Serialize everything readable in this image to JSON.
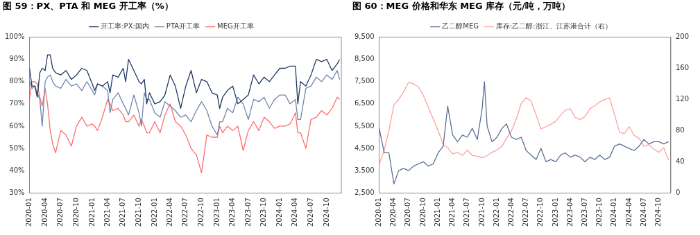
{
  "chart_data": [
    {
      "type": "line",
      "title": "图 59：PX、PTA 和 MEG 开工率（%）",
      "legend": "top",
      "grid": false,
      "x": [
        "2020-01-01",
        "2020-01-15",
        "2020-02-01",
        "2020-02-15",
        "2020-03-01",
        "2020-03-15",
        "2020-04-01",
        "2020-04-15",
        "2020-05-01",
        "2020-05-15",
        "2020-06-01",
        "2020-07-01",
        "2020-08-01",
        "2020-09-01",
        "2020-10-01",
        "2020-11-01",
        "2020-12-01",
        "2021-01-01",
        "2021-01-15",
        "2021-02-01",
        "2021-03-01",
        "2021-04-01",
        "2021-04-15",
        "2021-05-01",
        "2021-06-01",
        "2021-07-01",
        "2021-07-15",
        "2021-08-01",
        "2021-09-01",
        "2021-10-01",
        "2021-10-15",
        "2021-11-01",
        "2021-11-15",
        "2021-12-01",
        "2022-01-01",
        "2022-02-01",
        "2022-03-01",
        "2022-04-01",
        "2022-05-01",
        "2022-06-01",
        "2022-07-01",
        "2022-08-01",
        "2022-09-01",
        "2022-10-01",
        "2022-11-01",
        "2022-12-01",
        "2023-01-01",
        "2023-01-15",
        "2023-02-01",
        "2023-03-01",
        "2023-04-01",
        "2023-05-01",
        "2023-06-01",
        "2023-07-01",
        "2023-08-01",
        "2023-09-01",
        "2023-10-01",
        "2023-11-01",
        "2023-12-01",
        "2024-01-01",
        "2024-02-01",
        "2024-03-01",
        "2024-04-01",
        "2024-04-15",
        "2024-05-01",
        "2024-06-01",
        "2024-07-01",
        "2024-08-01",
        "2024-09-01",
        "2024-10-01",
        "2024-11-01",
        "2024-12-01",
        "2024-12-15"
      ],
      "xlim": [
        "2020-01-01",
        "2024-12-25"
      ],
      "xticks": [
        "2020-01",
        "2020-04",
        "2020-07",
        "2020-10",
        "2021-01",
        "2021-04",
        "2021-07",
        "2021-10",
        "2022-01",
        "2022-04",
        "2022-07",
        "2022-10",
        "2023-01",
        "2023-04",
        "2023-07",
        "2023-10",
        "2024-01",
        "2024-04",
        "2024-07",
        "2024-10"
      ],
      "ylim": [
        30,
        100
      ],
      "yticks": [
        {
          "value": 30,
          "label": "30%"
        },
        {
          "value": 40,
          "label": "40%"
        },
        {
          "value": 50,
          "label": "50%"
        },
        {
          "value": 60,
          "label": "60%"
        },
        {
          "value": 70,
          "label": "70%"
        },
        {
          "value": 80,
          "label": "80%"
        },
        {
          "value": 90,
          "label": "90%"
        },
        {
          "value": 100,
          "label": "100%"
        }
      ],
      "series": [
        {
          "name": "开工率:PX:国内",
          "color": "#1f3864",
          "values": [
            86,
            78,
            78,
            73,
            84,
            86,
            85,
            92,
            92,
            86,
            84,
            83,
            85,
            81,
            83,
            86,
            85,
            79,
            76,
            79,
            78,
            80,
            75,
            83,
            82,
            86,
            80,
            90,
            85,
            80,
            79,
            81,
            70,
            75,
            70,
            71,
            74,
            83,
            78,
            68,
            78,
            85,
            75,
            81,
            80,
            75,
            74,
            68,
            73,
            76,
            78,
            70,
            72,
            74,
            83,
            79,
            82,
            80,
            83,
            86,
            86,
            87,
            87,
            70,
            80,
            78,
            83,
            90,
            89,
            90,
            85,
            88,
            90
          ]
        },
        {
          "name": "PTA开工率",
          "color": "#6f86ad",
          "values": [
            80,
            77,
            78,
            75,
            72,
            60,
            80,
            82,
            83,
            80,
            78,
            77,
            81,
            78,
            79,
            76,
            80,
            76,
            74,
            79,
            78,
            76,
            66,
            72,
            75,
            70,
            68,
            65,
            74,
            66,
            60,
            75,
            72,
            72,
            66,
            64,
            71,
            69,
            67,
            64,
            65,
            62,
            67,
            71,
            67,
            60,
            56,
            62,
            62,
            68,
            66,
            73,
            70,
            63,
            72,
            71,
            73,
            68,
            72,
            74,
            74,
            70,
            72,
            63,
            63,
            77,
            78,
            82,
            80,
            83,
            81,
            85,
            81
          ]
        },
        {
          "name": "MEG开工率",
          "color": "#ff6b6b",
          "values": [
            72,
            80,
            80,
            79,
            73,
            69,
            77,
            70,
            58,
            52,
            48,
            58,
            56,
            51,
            60,
            64,
            60,
            61,
            60,
            58,
            64,
            72,
            70,
            67,
            68,
            65,
            62,
            62,
            65,
            60,
            63,
            60,
            57,
            57,
            62,
            57,
            65,
            70,
            62,
            60,
            56,
            50,
            47,
            39,
            56,
            55,
            55,
            60,
            57,
            60,
            58,
            60,
            49,
            58,
            62,
            58,
            64,
            62,
            59,
            60,
            60,
            61,
            66,
            57,
            57,
            50,
            63,
            64,
            67,
            65,
            68,
            73,
            72
          ]
        }
      ]
    },
    {
      "type": "line",
      "title": "图 60：MEG 价格和华东 MEG 库存（元/吨，万吨）",
      "legend": "top",
      "grid": false,
      "x": [
        "2020-01-01",
        "2020-02-01",
        "2020-03-01",
        "2020-04-01",
        "2020-05-01",
        "2020-06-01",
        "2020-07-01",
        "2020-08-01",
        "2020-09-01",
        "2020-10-01",
        "2020-11-01",
        "2020-12-01",
        "2021-01-01",
        "2021-02-01",
        "2021-03-01",
        "2021-04-01",
        "2021-05-01",
        "2021-06-01",
        "2021-07-01",
        "2021-08-01",
        "2021-09-01",
        "2021-10-01",
        "2021-10-15",
        "2021-11-01",
        "2021-12-01",
        "2022-01-01",
        "2022-02-01",
        "2022-03-01",
        "2022-04-01",
        "2022-05-01",
        "2022-06-01",
        "2022-07-01",
        "2022-08-01",
        "2022-09-01",
        "2022-10-01",
        "2022-11-01",
        "2022-12-01",
        "2023-01-01",
        "2023-02-01",
        "2023-03-01",
        "2023-04-01",
        "2023-05-01",
        "2023-06-01",
        "2023-07-01",
        "2023-08-01",
        "2023-09-01",
        "2023-10-01",
        "2023-11-01",
        "2023-12-01",
        "2024-01-01",
        "2024-02-01",
        "2024-03-01",
        "2024-04-01",
        "2024-05-01",
        "2024-06-01",
        "2024-07-01",
        "2024-08-01",
        "2024-09-01",
        "2024-10-01",
        "2024-11-01",
        "2024-12-01"
      ],
      "xlim": [
        "2020-01-01",
        "2024-12-15"
      ],
      "xticks": [
        "2020-01",
        "2020-04",
        "2020-07",
        "2020-10",
        "2021-01",
        "2021-04",
        "2021-07",
        "2021-10",
        "2022-01",
        "2022-04",
        "2022-07",
        "2022-10",
        "2023-01",
        "2023-04",
        "2023-07",
        "2023-10",
        "2024-01",
        "2024-04",
        "2024-07",
        "2024-10"
      ],
      "ylim": [
        2500,
        9500
      ],
      "yticks": [
        {
          "value": 2500,
          "label": "2,500"
        },
        {
          "value": 3500,
          "label": "3,500"
        },
        {
          "value": 4500,
          "label": "4,500"
        },
        {
          "value": 5500,
          "label": "5,500"
        },
        {
          "value": 6500,
          "label": "6,500"
        },
        {
          "value": 7500,
          "label": "7,500"
        },
        {
          "value": 8500,
          "label": "8,500"
        },
        {
          "value": 9500,
          "label": "9,500"
        }
      ],
      "y2lim": [
        0,
        200
      ],
      "y2ticks": [
        0,
        40,
        80,
        120,
        160,
        200
      ],
      "series": [
        {
          "name": "乙二醇MEG",
          "color": "#5b6f95",
          "values": [
            5400,
            4300,
            4300,
            2900,
            3500,
            3600,
            3500,
            3700,
            3800,
            3900,
            3700,
            3800,
            4300,
            4600,
            6400,
            5100,
            4800,
            5100,
            5000,
            5400,
            4900,
            6300,
            7500,
            5500,
            4800,
            5000,
            5400,
            5600,
            5000,
            4900,
            5000,
            4400,
            4200,
            4000,
            4500,
            3900,
            4000,
            3900,
            4200,
            4300,
            4100,
            4200,
            4100,
            3900,
            4100,
            4000,
            4200,
            4000,
            4100,
            4600,
            4700,
            4600,
            4500,
            4400,
            4600,
            4900,
            4700,
            4800,
            4800,
            4700,
            4800
          ]
        },
        {
          "name": "库存:乙二醇:浙江、江苏港合计（右）",
          "color": "#ffa0a0",
          "axis": "y2",
          "values": [
            37,
            55,
            80,
            113,
            120,
            130,
            142,
            140,
            136,
            125,
            110,
            95,
            80,
            62,
            58,
            50,
            52,
            48,
            55,
            48,
            47,
            45,
            46,
            48,
            52,
            55,
            60,
            70,
            80,
            95,
            115,
            122,
            118,
            100,
            82,
            85,
            88,
            92,
            100,
            106,
            108,
            97,
            94,
            98,
            108,
            112,
            117,
            120,
            122,
            100,
            78,
            76,
            85,
            74,
            70,
            60,
            62,
            56,
            52,
            58,
            42
          ]
        }
      ]
    }
  ]
}
